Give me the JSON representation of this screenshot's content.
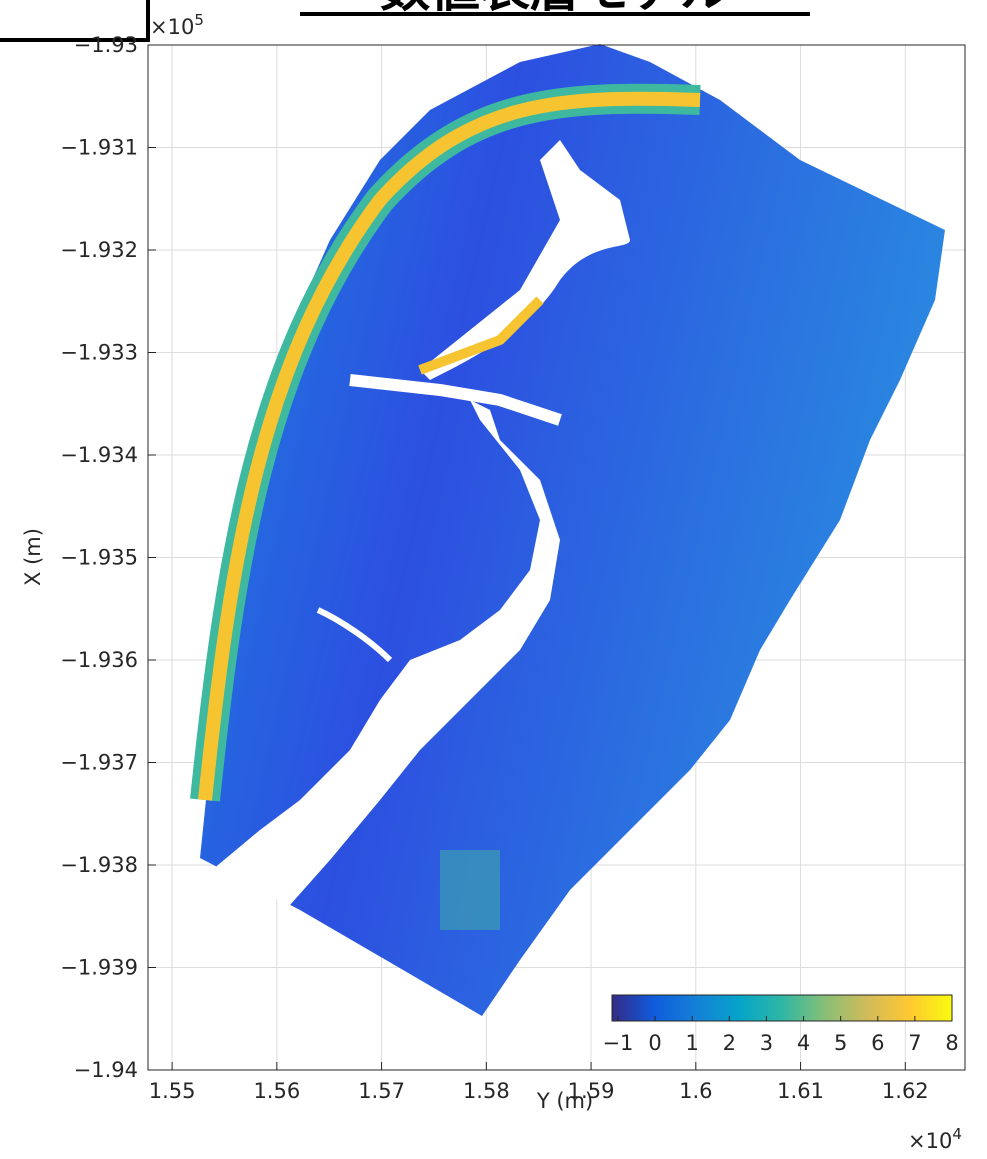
{
  "chart_data": {
    "type": "map",
    "title": "数値表層モデル",
    "xlabel": "Y (m)",
    "ylabel": "X (m)",
    "x_multiplier": "×10",
    "x_exponent": "4",
    "y_multiplier": "×10",
    "y_exponent": "5",
    "xlim": [
      1.5477,
      1.6257
    ],
    "ylim": [
      -1.94,
      -1.93
    ],
    "xticks": [
      1.55,
      1.56,
      1.57,
      1.58,
      1.59,
      1.6,
      1.61,
      1.62
    ],
    "yticks": [
      {
        "value": -1.93,
        "label": "−1.93"
      },
      {
        "value": -1.931,
        "label": "−1.931"
      },
      {
        "value": -1.932,
        "label": "−1.932"
      },
      {
        "value": -1.933,
        "label": "−1.933"
      },
      {
        "value": -1.934,
        "label": "−1.934"
      },
      {
        "value": -1.935,
        "label": "−1.935"
      },
      {
        "value": -1.936,
        "label": "−1.936"
      },
      {
        "value": -1.937,
        "label": "−1.937"
      },
      {
        "value": -1.938,
        "label": "−1.938"
      },
      {
        "value": -1.939,
        "label": "−1.939"
      },
      {
        "value": -1.94,
        "label": "−1.94"
      }
    ],
    "grid": true,
    "colorbar": {
      "clim": [
        -1.16,
        8
      ],
      "ticks": [
        {
          "value": -1,
          "label": "−1"
        },
        0,
        1,
        2,
        3,
        4,
        5,
        6,
        7,
        8
      ],
      "colors": [
        "#352a87",
        "#0f5cdd",
        "#1481d6",
        "#06a4ca",
        "#2eb7a4",
        "#87bf77",
        "#d1bb59",
        "#fec832",
        "#f9fb0e"
      ]
    }
  }
}
